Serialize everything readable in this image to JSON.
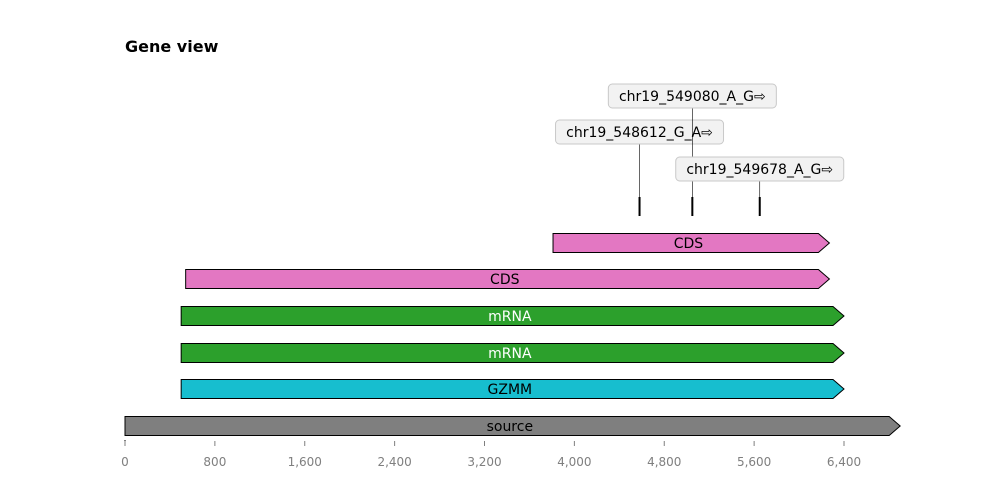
{
  "title": "Gene view",
  "axis": {
    "min": 0,
    "max": 6900,
    "ticks": [
      0,
      800,
      1600,
      2400,
      3200,
      4000,
      4800,
      5600,
      6400
    ],
    "tick_labels": [
      "0",
      "800",
      "1,600",
      "2,400",
      "3,200",
      "4,000",
      "4,800",
      "5,600",
      "6,400"
    ]
  },
  "features": [
    {
      "label": "source",
      "start": 0,
      "end": 6900,
      "color": "#7f7f7f",
      "text_color": "#000000"
    },
    {
      "label": "GZMM",
      "start": 500,
      "end": 6400,
      "color": "#17becf",
      "text_color": "#000000"
    },
    {
      "label": "mRNA",
      "start": 500,
      "end": 6400,
      "color": "#2ca02c",
      "text_color": "#ffffff"
    },
    {
      "label": "mRNA",
      "start": 500,
      "end": 6400,
      "color": "#2ca02c",
      "text_color": "#ffffff"
    },
    {
      "label": "CDS",
      "start": 540,
      "end": 6270,
      "color": "#e377c2",
      "text_color": "#000000"
    },
    {
      "label": "CDS",
      "start": 3810,
      "end": 6270,
      "color": "#e377c2",
      "text_color": "#000000"
    }
  ],
  "variants": [
    {
      "label": "chr19_548612_G_A⇨",
      "position": 4580
    },
    {
      "label": "chr19_549080_A_G⇨",
      "position": 5050
    },
    {
      "label": "chr19_549678_A_G⇨",
      "position": 5650
    }
  ]
}
